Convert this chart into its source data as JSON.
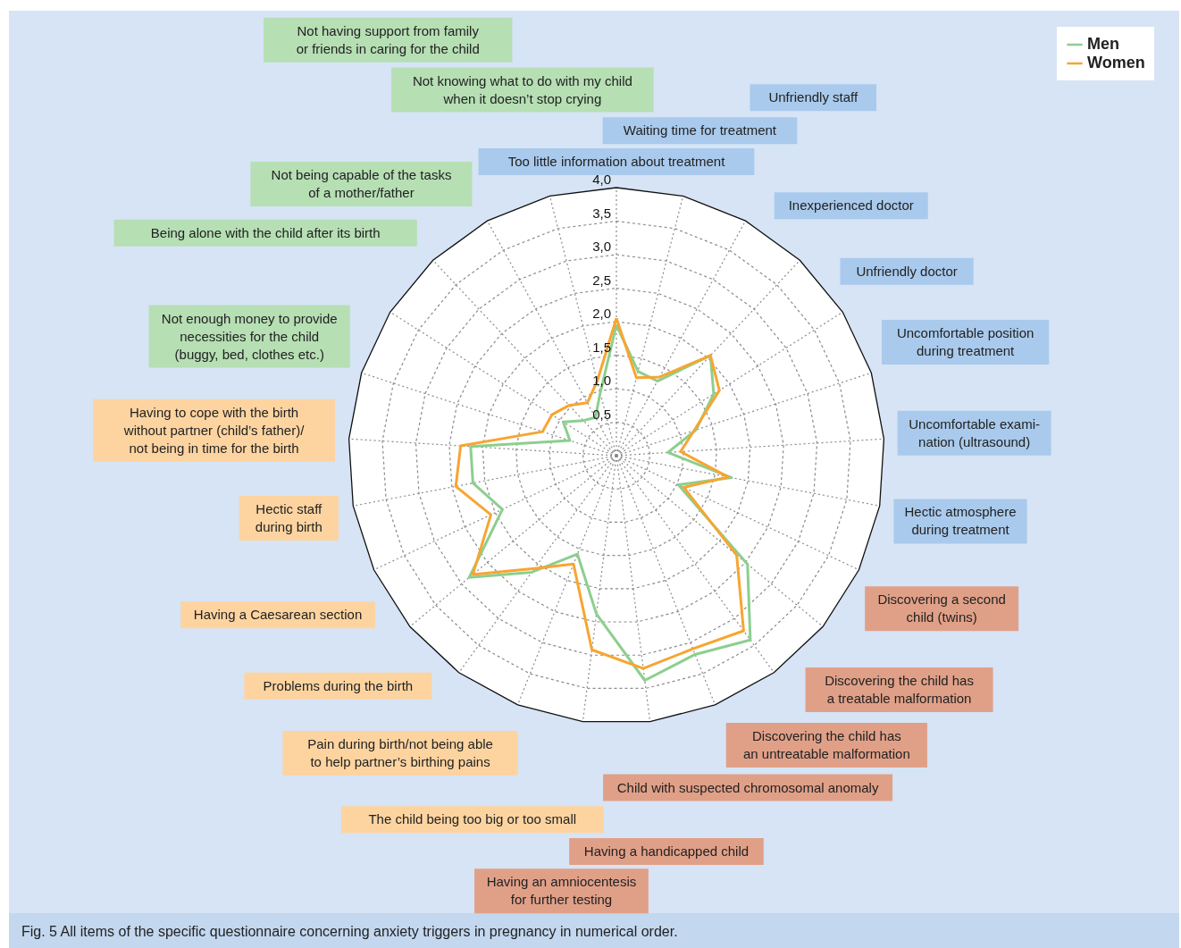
{
  "chart_data": {
    "type": "radar",
    "title": "Fig. 5    All items of the specific questionnaire concerning anxiety triggers in pregnancy in numerical order.",
    "categories": [
      "Too little information about treatment",
      "Waiting time for treatment",
      "Unfriendly staff",
      "Inexperienced doctor",
      "Unfriendly doctor",
      "Uncomfortable position\nduring treatment",
      "Uncomfortable exami-\nnation (ultrasound)",
      "Hectic atmosphere\nduring treatment",
      "Discovering a second\nchild (twins)",
      "Discovering the child has\na treatable malformation",
      "Discovering the child has\nan untreatable malformation",
      "Child with suspected chromosomal anomaly",
      "Having a handicapped child",
      "Having an amniocentesis\nfor further testing",
      "The child being too big or too small",
      "Pain during birth/not being able\nto help partner’s birthing pains",
      "Problems during the birth",
      "Having a Caesarean section",
      "Hectic staff\nduring birth",
      "Having to cope with the birth\nwithout partner (child’s father)/\nnot being in time for the birth",
      "Not enough money to provide\nnecessities for the child\n(buggy, bed, clothes etc.)",
      "Being alone with the child after its birth",
      "Not being capable of the tasks\nof a mother/father",
      "Not having support from family\nor friends in caring for the child",
      "Not knowing what to do with my child\nwhen it doesn’t stop crying"
    ],
    "colors": [
      "#a9caec",
      "#a9caec",
      "#a9caec",
      "#a9caec",
      "#a9caec",
      "#a9caec",
      "#a9caec",
      "#a9caec",
      "#e0a088",
      "#e0a088",
      "#e0a088",
      "#e0a088",
      "#e0a088",
      "#e0a088",
      "#fdd4a0",
      "#fdd4a0",
      "#fdd4a0",
      "#fdd4a0",
      "#fdd4a0",
      "#fdd4a0",
      "#b6dfb4",
      "#b6dfb4",
      "#b6dfb4",
      "#b6dfb4",
      "#b6dfb4"
    ],
    "series": [
      {
        "name": "Men",
        "color": "#8ccf8e",
        "values": [
          1.95,
          1.3,
          1.27,
          2.05,
          1.72,
          1.25,
          0.77,
          1.75,
          1.02,
          2.54,
          3.4,
          3.19,
          3.38,
          2.38,
          1.58,
          2.15,
          2.85,
          1.88,
          2.18,
          2.18,
          0.73,
          0.94,
          0.72,
          0.65,
          0.97
        ]
      },
      {
        "name": "Women",
        "color": "#f7a531",
        "values": [
          2.05,
          1.2,
          1.34,
          2.05,
          1.82,
          1.22,
          0.96,
          1.7,
          1.11,
          2.33,
          3.23,
          3.1,
          3.2,
          2.92,
          1.74,
          2.08,
          2.78,
          2.07,
          2.44,
          2.33,
          1.16,
          1.14,
          1.03,
          0.9,
          1.15
        ]
      }
    ],
    "ylim": [
      0,
      4
    ],
    "yticks": [
      {
        "value": 0.5,
        "label": "0,5"
      },
      {
        "value": 1.0,
        "label": "1,0"
      },
      {
        "value": 1.5,
        "label": "1,5"
      },
      {
        "value": 2.0,
        "label": "2,0"
      },
      {
        "value": 2.5,
        "label": "2,5"
      },
      {
        "value": 3.0,
        "label": "3,0"
      },
      {
        "value": 3.5,
        "label": "3,5"
      },
      {
        "value": 4.0,
        "label": "4,0"
      }
    ],
    "grid": true,
    "legend": "top right"
  }
}
